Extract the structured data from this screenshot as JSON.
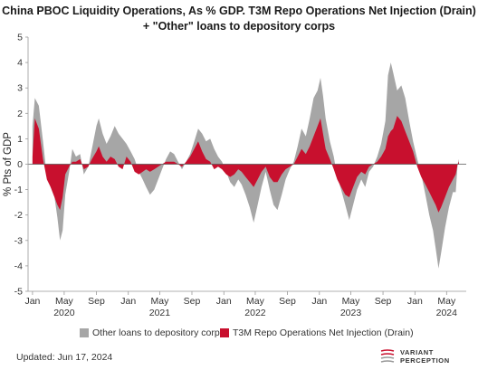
{
  "chart_data": {
    "type": "area",
    "title": "China PBOC Liquidity Operations, As % GDP. T3M Repo Operations Net Injection (Drain) + \"Other\" loans to depository corps",
    "ylabel": "% Pts of GDP",
    "xlabel": "",
    "ylim": [
      -5,
      5
    ],
    "y_ticks": [
      5,
      4,
      3,
      2,
      1,
      0,
      -1,
      -2,
      -3,
      -4,
      -5
    ],
    "xlim": [
      "2019-12-15",
      "2024-07-15"
    ],
    "x_ticks": [
      {
        "date": "2020-01-01",
        "label": "Jan"
      },
      {
        "date": "2020-05-01",
        "label": "May"
      },
      {
        "date": "2020-09-01",
        "label": "Sep"
      },
      {
        "date": "2021-01-01",
        "label": "Jan"
      },
      {
        "date": "2021-05-01",
        "label": "May"
      },
      {
        "date": "2021-09-01",
        "label": "Sep"
      },
      {
        "date": "2022-01-01",
        "label": "Jan"
      },
      {
        "date": "2022-05-01",
        "label": "May"
      },
      {
        "date": "2022-09-01",
        "label": "Sep"
      },
      {
        "date": "2023-01-01",
        "label": "Jan"
      },
      {
        "date": "2023-05-01",
        "label": "May"
      },
      {
        "date": "2023-09-01",
        "label": "Sep"
      },
      {
        "date": "2024-01-01",
        "label": "Jan"
      },
      {
        "date": "2024-05-01",
        "label": "May"
      }
    ],
    "year_labels": [
      {
        "date": "2020-05-01",
        "label": "2020"
      },
      {
        "date": "2021-05-01",
        "label": "2021"
      },
      {
        "date": "2022-05-01",
        "label": "2022"
      },
      {
        "date": "2023-05-01",
        "label": "2023"
      },
      {
        "date": "2024-05-01",
        "label": "2024"
      }
    ],
    "grid": false,
    "legend_position": "bottom",
    "series": [
      {
        "name": "Other loans to depository corps",
        "color": "#a6a6a6",
        "points": [
          [
            "2020-01-01",
            1.5
          ],
          [
            "2020-01-10",
            2.6
          ],
          [
            "2020-01-25",
            2.3
          ],
          [
            "2020-02-10",
            0.9
          ],
          [
            "2020-02-25",
            -0.5
          ],
          [
            "2020-03-10",
            -0.9
          ],
          [
            "2020-03-25",
            -1.3
          ],
          [
            "2020-04-05",
            -2.1
          ],
          [
            "2020-04-15",
            -3.0
          ],
          [
            "2020-04-25",
            -2.6
          ],
          [
            "2020-05-05",
            -1.2
          ],
          [
            "2020-05-20",
            -0.3
          ],
          [
            "2020-06-01",
            0.6
          ],
          [
            "2020-06-15",
            0.3
          ],
          [
            "2020-07-01",
            0.4
          ],
          [
            "2020-07-15",
            -0.4
          ],
          [
            "2020-08-01",
            -0.1
          ],
          [
            "2020-08-15",
            0.6
          ],
          [
            "2020-09-01",
            1.5
          ],
          [
            "2020-09-10",
            1.8
          ],
          [
            "2020-09-25",
            1.2
          ],
          [
            "2020-10-10",
            0.8
          ],
          [
            "2020-10-25",
            1.1
          ],
          [
            "2020-11-10",
            1.5
          ],
          [
            "2020-11-25",
            1.2
          ],
          [
            "2020-12-10",
            1.0
          ],
          [
            "2020-12-25",
            0.8
          ],
          [
            "2021-01-10",
            0.5
          ],
          [
            "2021-01-25",
            0.2
          ],
          [
            "2021-02-10",
            -0.3
          ],
          [
            "2021-02-25",
            -0.6
          ],
          [
            "2021-03-10",
            -0.9
          ],
          [
            "2021-03-25",
            -1.2
          ],
          [
            "2021-04-10",
            -1.0
          ],
          [
            "2021-04-25",
            -0.6
          ],
          [
            "2021-05-10",
            -0.2
          ],
          [
            "2021-05-25",
            0.2
          ],
          [
            "2021-06-10",
            0.5
          ],
          [
            "2021-06-25",
            0.4
          ],
          [
            "2021-07-10",
            0.1
          ],
          [
            "2021-07-25",
            -0.2
          ],
          [
            "2021-08-10",
            0.1
          ],
          [
            "2021-08-25",
            0.4
          ],
          [
            "2021-09-10",
            0.9
          ],
          [
            "2021-09-25",
            1.4
          ],
          [
            "2021-10-10",
            1.2
          ],
          [
            "2021-10-25",
            0.9
          ],
          [
            "2021-11-10",
            1.0
          ],
          [
            "2021-11-25",
            0.6
          ],
          [
            "2021-12-10",
            0.3
          ],
          [
            "2021-12-25",
            0.1
          ],
          [
            "2022-01-10",
            -0.3
          ],
          [
            "2022-01-25",
            -0.7
          ],
          [
            "2022-02-10",
            -0.9
          ],
          [
            "2022-02-25",
            -0.6
          ],
          [
            "2022-03-10",
            -0.8
          ],
          [
            "2022-03-25",
            -1.2
          ],
          [
            "2022-04-10",
            -1.7
          ],
          [
            "2022-04-25",
            -2.3
          ],
          [
            "2022-05-10",
            -1.6
          ],
          [
            "2022-05-25",
            -0.9
          ],
          [
            "2022-06-10",
            -0.3
          ],
          [
            "2022-06-25",
            -1.0
          ],
          [
            "2022-07-10",
            -1.6
          ],
          [
            "2022-07-25",
            -1.8
          ],
          [
            "2022-08-10",
            -1.2
          ],
          [
            "2022-08-25",
            -0.6
          ],
          [
            "2022-09-10",
            -0.2
          ],
          [
            "2022-09-25",
            0.1
          ],
          [
            "2022-10-10",
            0.7
          ],
          [
            "2022-10-25",
            1.4
          ],
          [
            "2022-11-10",
            1.1
          ],
          [
            "2022-11-25",
            1.8
          ],
          [
            "2022-12-10",
            2.6
          ],
          [
            "2022-12-25",
            2.9
          ],
          [
            "2023-01-05",
            3.4
          ],
          [
            "2023-01-15",
            2.7
          ],
          [
            "2023-01-25",
            1.8
          ],
          [
            "2023-02-10",
            0.9
          ],
          [
            "2023-02-25",
            0.3
          ],
          [
            "2023-03-10",
            -0.5
          ],
          [
            "2023-03-25",
            -1.0
          ],
          [
            "2023-04-10",
            -1.6
          ],
          [
            "2023-04-25",
            -2.2
          ],
          [
            "2023-05-10",
            -1.6
          ],
          [
            "2023-05-25",
            -1.0
          ],
          [
            "2023-06-10",
            -0.6
          ],
          [
            "2023-06-25",
            -0.9
          ],
          [
            "2023-07-10",
            -0.3
          ],
          [
            "2023-07-25",
            -0.1
          ],
          [
            "2023-08-10",
            0.3
          ],
          [
            "2023-08-25",
            0.8
          ],
          [
            "2023-09-10",
            1.7
          ],
          [
            "2023-09-20",
            3.5
          ],
          [
            "2023-10-01",
            4.0
          ],
          [
            "2023-10-10",
            3.6
          ],
          [
            "2023-10-25",
            2.9
          ],
          [
            "2023-11-10",
            3.1
          ],
          [
            "2023-11-25",
            2.6
          ],
          [
            "2023-12-10",
            1.7
          ],
          [
            "2023-12-25",
            0.9
          ],
          [
            "2024-01-10",
            0.2
          ],
          [
            "2024-01-25",
            -0.4
          ],
          [
            "2024-02-10",
            -1.2
          ],
          [
            "2024-02-25",
            -2.0
          ],
          [
            "2024-03-10",
            -2.6
          ],
          [
            "2024-03-20",
            -3.3
          ],
          [
            "2024-03-31",
            -4.1
          ],
          [
            "2024-04-10",
            -3.5
          ],
          [
            "2024-04-25",
            -2.5
          ],
          [
            "2024-05-10",
            -1.7
          ],
          [
            "2024-05-25",
            -1.1
          ],
          [
            "2024-06-05",
            -1.1
          ],
          [
            "2024-06-12",
            0.0
          ],
          [
            "2024-06-17",
            0.2
          ]
        ]
      },
      {
        "name": "T3M Repo Operations Net Injection (Drain)",
        "color": "#c8102e",
        "points": [
          [
            "2020-01-01",
            0.3
          ],
          [
            "2020-01-10",
            1.8
          ],
          [
            "2020-01-25",
            1.4
          ],
          [
            "2020-02-10",
            0.2
          ],
          [
            "2020-02-25",
            -0.6
          ],
          [
            "2020-03-10",
            -0.9
          ],
          [
            "2020-03-25",
            -1.3
          ],
          [
            "2020-04-05",
            -1.6
          ],
          [
            "2020-04-15",
            -1.8
          ],
          [
            "2020-04-25",
            -1.3
          ],
          [
            "2020-05-05",
            -0.4
          ],
          [
            "2020-05-20",
            -0.1
          ],
          [
            "2020-06-01",
            0.1
          ],
          [
            "2020-06-15",
            0.1
          ],
          [
            "2020-07-01",
            0.2
          ],
          [
            "2020-07-15",
            -0.2
          ],
          [
            "2020-08-01",
            -0.1
          ],
          [
            "2020-08-15",
            0.2
          ],
          [
            "2020-09-01",
            0.5
          ],
          [
            "2020-09-10",
            0.7
          ],
          [
            "2020-09-25",
            0.3
          ],
          [
            "2020-10-10",
            0.1
          ],
          [
            "2020-10-25",
            0.3
          ],
          [
            "2020-11-10",
            0.2
          ],
          [
            "2020-11-25",
            -0.1
          ],
          [
            "2020-12-10",
            -0.2
          ],
          [
            "2020-12-25",
            0.3
          ],
          [
            "2021-01-10",
            0.1
          ],
          [
            "2021-01-25",
            -0.3
          ],
          [
            "2021-02-10",
            -0.4
          ],
          [
            "2021-02-25",
            -0.3
          ],
          [
            "2021-03-10",
            -0.2
          ],
          [
            "2021-03-25",
            -0.3
          ],
          [
            "2021-04-10",
            -0.2
          ],
          [
            "2021-04-25",
            -0.1
          ],
          [
            "2021-05-10",
            0.0
          ],
          [
            "2021-05-25",
            0.1
          ],
          [
            "2021-06-10",
            0.1
          ],
          [
            "2021-06-25",
            0.1
          ],
          [
            "2021-07-10",
            0.0
          ],
          [
            "2021-07-25",
            -0.1
          ],
          [
            "2021-08-10",
            0.1
          ],
          [
            "2021-08-25",
            0.3
          ],
          [
            "2021-09-10",
            0.6
          ],
          [
            "2021-09-25",
            0.9
          ],
          [
            "2021-10-10",
            0.5
          ],
          [
            "2021-10-25",
            0.2
          ],
          [
            "2021-11-10",
            0.1
          ],
          [
            "2021-11-25",
            -0.2
          ],
          [
            "2021-12-10",
            -0.1
          ],
          [
            "2021-12-25",
            -0.2
          ],
          [
            "2022-01-10",
            -0.4
          ],
          [
            "2022-01-25",
            -0.5
          ],
          [
            "2022-02-10",
            -0.4
          ],
          [
            "2022-02-25",
            -0.2
          ],
          [
            "2022-03-10",
            -0.3
          ],
          [
            "2022-03-25",
            -0.5
          ],
          [
            "2022-04-10",
            -0.7
          ],
          [
            "2022-04-25",
            -0.9
          ],
          [
            "2022-05-10",
            -0.6
          ],
          [
            "2022-05-25",
            -0.3
          ],
          [
            "2022-06-10",
            -0.1
          ],
          [
            "2022-06-25",
            -0.5
          ],
          [
            "2022-07-10",
            -0.7
          ],
          [
            "2022-07-25",
            -0.7
          ],
          [
            "2022-08-10",
            -0.4
          ],
          [
            "2022-08-25",
            -0.2
          ],
          [
            "2022-09-10",
            -0.1
          ],
          [
            "2022-09-25",
            0.0
          ],
          [
            "2022-10-10",
            0.3
          ],
          [
            "2022-10-25",
            0.6
          ],
          [
            "2022-11-10",
            0.4
          ],
          [
            "2022-11-25",
            0.7
          ],
          [
            "2022-12-10",
            1.1
          ],
          [
            "2022-12-25",
            1.5
          ],
          [
            "2023-01-05",
            1.8
          ],
          [
            "2023-01-15",
            1.2
          ],
          [
            "2023-01-25",
            0.6
          ],
          [
            "2023-02-10",
            0.2
          ],
          [
            "2023-02-25",
            -0.2
          ],
          [
            "2023-03-10",
            -0.6
          ],
          [
            "2023-03-25",
            -0.9
          ],
          [
            "2023-04-10",
            -1.2
          ],
          [
            "2023-04-25",
            -1.3
          ],
          [
            "2023-05-10",
            -0.9
          ],
          [
            "2023-05-25",
            -0.5
          ],
          [
            "2023-06-10",
            -0.3
          ],
          [
            "2023-06-25",
            -0.4
          ],
          [
            "2023-07-10",
            -0.1
          ],
          [
            "2023-07-25",
            0.0
          ],
          [
            "2023-08-10",
            0.1
          ],
          [
            "2023-08-25",
            0.3
          ],
          [
            "2023-09-10",
            0.6
          ],
          [
            "2023-09-20",
            1.1
          ],
          [
            "2023-10-01",
            1.3
          ],
          [
            "2023-10-10",
            1.4
          ],
          [
            "2023-10-25",
            1.9
          ],
          [
            "2023-11-10",
            1.7
          ],
          [
            "2023-11-25",
            1.3
          ],
          [
            "2023-12-10",
            0.9
          ],
          [
            "2023-12-25",
            0.5
          ],
          [
            "2024-01-10",
            -0.1
          ],
          [
            "2024-01-25",
            -0.5
          ],
          [
            "2024-02-10",
            -0.8
          ],
          [
            "2024-02-25",
            -1.1
          ],
          [
            "2024-03-10",
            -1.4
          ],
          [
            "2024-03-20",
            -1.6
          ],
          [
            "2024-03-31",
            -1.9
          ],
          [
            "2024-04-10",
            -1.7
          ],
          [
            "2024-04-25",
            -1.3
          ],
          [
            "2024-05-10",
            -0.9
          ],
          [
            "2024-05-25",
            -0.6
          ],
          [
            "2024-06-05",
            -0.4
          ],
          [
            "2024-06-12",
            0.0
          ],
          [
            "2024-06-17",
            0.1
          ]
        ]
      }
    ]
  },
  "footer": {
    "updated": "Updated: Jun 17, 2024",
    "logo_line1": "VARIANT",
    "logo_line2": "PERCEPTION"
  }
}
